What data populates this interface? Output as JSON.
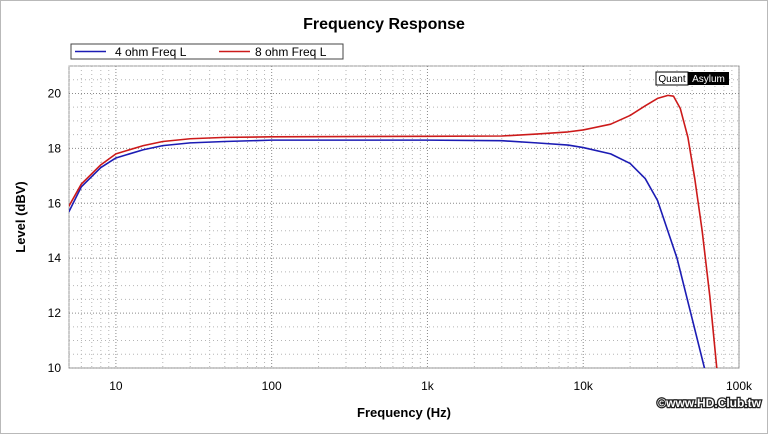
{
  "chart_data": {
    "type": "line",
    "title": "Frequency Response",
    "xlabel": "Frequency (Hz)",
    "ylabel": "Level (dBV)",
    "x_scale": "log",
    "xlim": [
      5,
      100000
    ],
    "ylim": [
      10,
      21
    ],
    "grid": true,
    "legend_position": "top-left",
    "x_ticks": [
      {
        "value": 10,
        "label": "10"
      },
      {
        "value": 100,
        "label": "100"
      },
      {
        "value": 1000,
        "label": "1k"
      },
      {
        "value": 10000,
        "label": "10k"
      },
      {
        "value": 100000,
        "label": "100k"
      }
    ],
    "y_ticks": [
      {
        "value": 10,
        "label": "10"
      },
      {
        "value": 12,
        "label": "12"
      },
      {
        "value": 14,
        "label": "14"
      },
      {
        "value": 16,
        "label": "16"
      },
      {
        "value": 18,
        "label": "18"
      },
      {
        "value": 20,
        "label": "20"
      }
    ],
    "series": [
      {
        "name": "4 ohm Freq L",
        "color": "#1c1cb4",
        "x": [
          5,
          6,
          8,
          10,
          15,
          20,
          30,
          50,
          100,
          300,
          1000,
          3000,
          5000,
          8000,
          10000,
          15000,
          20000,
          25000,
          30000,
          40000,
          50000,
          60000
        ],
        "y": [
          15.7,
          16.6,
          17.3,
          17.65,
          17.95,
          18.1,
          18.2,
          18.25,
          18.3,
          18.3,
          18.3,
          18.28,
          18.2,
          18.12,
          18.03,
          17.8,
          17.45,
          16.9,
          16.1,
          14.0,
          11.8,
          10.0
        ]
      },
      {
        "name": "8 ohm Freq L",
        "color": "#cc1a1a",
        "x": [
          5,
          6,
          8,
          10,
          15,
          20,
          30,
          50,
          100,
          300,
          1000,
          3000,
          5000,
          8000,
          10000,
          15000,
          20000,
          25000,
          30000,
          35000,
          38000,
          42000,
          47000,
          52000,
          58000,
          65000,
          72000
        ],
        "y": [
          15.9,
          16.7,
          17.4,
          17.8,
          18.1,
          18.25,
          18.35,
          18.4,
          18.42,
          18.43,
          18.44,
          18.45,
          18.52,
          18.6,
          18.67,
          18.88,
          19.2,
          19.55,
          19.82,
          19.93,
          19.9,
          19.45,
          18.4,
          16.9,
          15.0,
          12.6,
          10.0
        ]
      }
    ],
    "watermark": "QuantAsylum",
    "copyright": "©www.HD.Club.tw"
  }
}
